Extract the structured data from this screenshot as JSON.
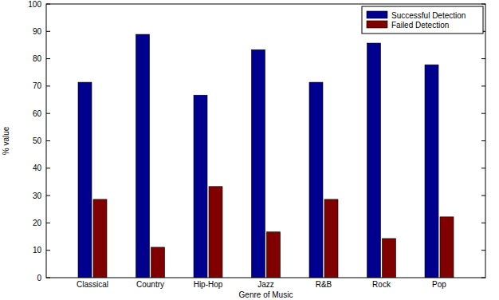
{
  "chart_data": {
    "type": "bar",
    "x_label": "Genre of Music",
    "y_label": "% value",
    "categories": [
      "Classical",
      "Country",
      "Hip-Hop",
      "Jazz",
      "R&B",
      "Rock",
      "Pop"
    ],
    "series": [
      {
        "name": "Successful Detection",
        "color": "#00008f",
        "values": [
          71.4,
          88.9,
          66.7,
          83.3,
          71.4,
          85.7,
          77.8
        ]
      },
      {
        "name": "Failed Detection",
        "color": "#800000",
        "values": [
          28.6,
          11.1,
          33.3,
          16.7,
          28.6,
          14.3,
          22.2
        ]
      }
    ],
    "ylim": [
      0,
      100
    ],
    "yticks": [
      0,
      10,
      20,
      30,
      40,
      50,
      60,
      70,
      80,
      90,
      100
    ],
    "grid": false,
    "legend": "northeast"
  }
}
